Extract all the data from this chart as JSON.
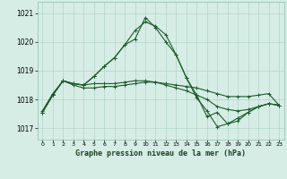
{
  "background_color": "#d6ede6",
  "grid_color": "#b0d4c8",
  "line_color": "#1a5c2a",
  "title": "Graphe pression niveau de la mer (hPa)",
  "xlim": [
    -0.5,
    23.5
  ],
  "ylim": [
    1016.6,
    1021.4
  ],
  "yticks": [
    1017,
    1018,
    1019,
    1020,
    1021
  ],
  "xticks": [
    0,
    1,
    2,
    3,
    4,
    5,
    6,
    7,
    8,
    9,
    10,
    11,
    12,
    13,
    14,
    15,
    16,
    17,
    18,
    19,
    20,
    21,
    22,
    23
  ],
  "series": [
    [
      1017.6,
      1018.2,
      1018.65,
      1018.5,
      1018.4,
      1018.4,
      1018.45,
      1018.45,
      1018.5,
      1018.55,
      1018.6,
      1018.6,
      1018.55,
      1018.5,
      1018.45,
      1018.4,
      1018.3,
      1018.2,
      1018.1,
      1018.1,
      1018.1,
      1018.15,
      1018.2,
      1017.8
    ],
    [
      1017.55,
      1018.15,
      1018.65,
      1018.55,
      1018.5,
      1018.8,
      1019.15,
      1019.45,
      1019.9,
      1020.4,
      1020.7,
      1020.55,
      1020.25,
      1019.55,
      1018.75,
      1018.15,
      1017.4,
      1017.55,
      1017.15,
      1017.25,
      1017.55,
      1017.75,
      1017.85,
      1017.8
    ],
    [
      1017.55,
      1018.15,
      1018.65,
      1018.55,
      1018.5,
      1018.8,
      1019.15,
      1019.45,
      1019.9,
      1020.1,
      1020.85,
      1020.5,
      1020.0,
      1019.55,
      1018.75,
      1018.05,
      1017.6,
      1017.05,
      1017.15,
      1017.35,
      1017.55,
      1017.75,
      1017.85,
      1017.8
    ],
    [
      1017.55,
      1018.15,
      1018.65,
      1018.55,
      1018.5,
      1018.55,
      1018.55,
      1018.55,
      1018.6,
      1018.65,
      1018.65,
      1018.6,
      1018.5,
      1018.4,
      1018.3,
      1018.15,
      1018.0,
      1017.75,
      1017.65,
      1017.6,
      1017.65,
      1017.75,
      1017.85,
      1017.8
    ]
  ]
}
